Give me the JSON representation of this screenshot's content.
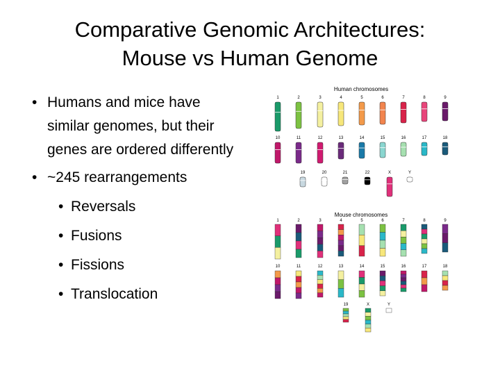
{
  "title": {
    "line1": "Comparative Genomic Architectures:",
    "line2": "Mouse vs Human Genome"
  },
  "bullets": [
    {
      "text": "Humans and mice have similar genomes, but their genes are ordered differently"
    },
    {
      "text": "~245 rearrangements",
      "sub": [
        "Reversals",
        "Fusions",
        "Fissions",
        "Translocation"
      ]
    }
  ],
  "figure": {
    "human": {
      "title": "Human chromosomes",
      "chromosomes": [
        "1",
        "2",
        "3",
        "4",
        "5",
        "6",
        "7",
        "8",
        "9",
        "10",
        "11",
        "12",
        "13",
        "14",
        "15",
        "16",
        "17",
        "18",
        "19",
        "20",
        "21",
        "22",
        "X",
        "Y"
      ]
    },
    "mouse": {
      "title": "Mouse chromosomes",
      "chromosomes": [
        "1",
        "2",
        "3",
        "4",
        "5",
        "6",
        "7",
        "8",
        "9",
        "10",
        "11",
        "12",
        "13",
        "14",
        "15",
        "16",
        "17",
        "18",
        "19",
        "X",
        "Y"
      ]
    }
  }
}
